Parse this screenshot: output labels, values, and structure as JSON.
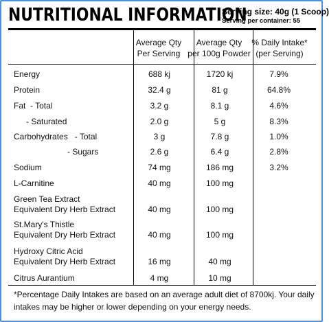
{
  "title": "NUTRITIONAL INFORMATION",
  "serving_size": "Serving size: 40g (1 Scoop)",
  "serving_per_container": "Serving per container: 55",
  "columns": {
    "per_serving": [
      "Average Qty",
      "Per Serving"
    ],
    "per_100g": [
      "Average Qty",
      "per 100g Powder"
    ],
    "daily_intake": [
      "% Daily Intake*",
      "(per Serving)"
    ]
  },
  "rows": [
    {
      "label": [
        "Energy"
      ],
      "serving": "688 kj",
      "per100": "1720 kj",
      "daily": "7.9%"
    },
    {
      "label": [
        "Protein"
      ],
      "serving": "32.4 g",
      "per100": "81 g",
      "daily": "64.8%"
    },
    {
      "label": [
        "Fat  - Total"
      ],
      "serving": "3.2 g",
      "per100": "8.1 g",
      "daily": "4.6%"
    },
    {
      "label": [
        "- Saturated"
      ],
      "serving": "2.0 g",
      "per100": "5 g",
      "daily": "8.3%"
    },
    {
      "label": [
        "Carbohydrates   - Total"
      ],
      "serving": "3 g",
      "per100": "7.8 g",
      "daily": "1.0%"
    },
    {
      "label": [
        "- Sugars"
      ],
      "serving": "2.6 g",
      "per100": "6.4 g",
      "daily": "2.8%"
    },
    {
      "label": [
        "Sodium"
      ],
      "serving": "74 mg",
      "per100": "186 mg",
      "daily": "3.2%"
    },
    {
      "label": [
        "L-Carnitine"
      ],
      "serving": "40 mg",
      "per100": "100 mg",
      "daily": ""
    },
    {
      "label": [
        "Green Tea Extract",
        "Equivalent Dry Herb Extract"
      ],
      "serving": "40 mg",
      "per100": "100 mg",
      "daily": ""
    },
    {
      "label": [
        "St.Mary's Thistle",
        "Equivalent Dry Herb Extract"
      ],
      "serving": "40 mg",
      "per100": "100 mg",
      "daily": ""
    },
    {
      "label": [
        "Hydroxy Citric Acid",
        "Equivalent Dry Herb Extract"
      ],
      "serving": "16 mg",
      "per100": "40 mg",
      "daily": ""
    },
    {
      "label": [
        "Citrus Aurantium"
      ],
      "serving": "4 mg",
      "per100": "10 mg",
      "daily": ""
    }
  ],
  "footnote": "*Percentage Daily Intakes are based on an average adult diet of 8700kj. Your daily intakes may be higher or lower depending on your energy needs.",
  "colors": {
    "border": "#4f8fd8",
    "text": "#111111"
  }
}
